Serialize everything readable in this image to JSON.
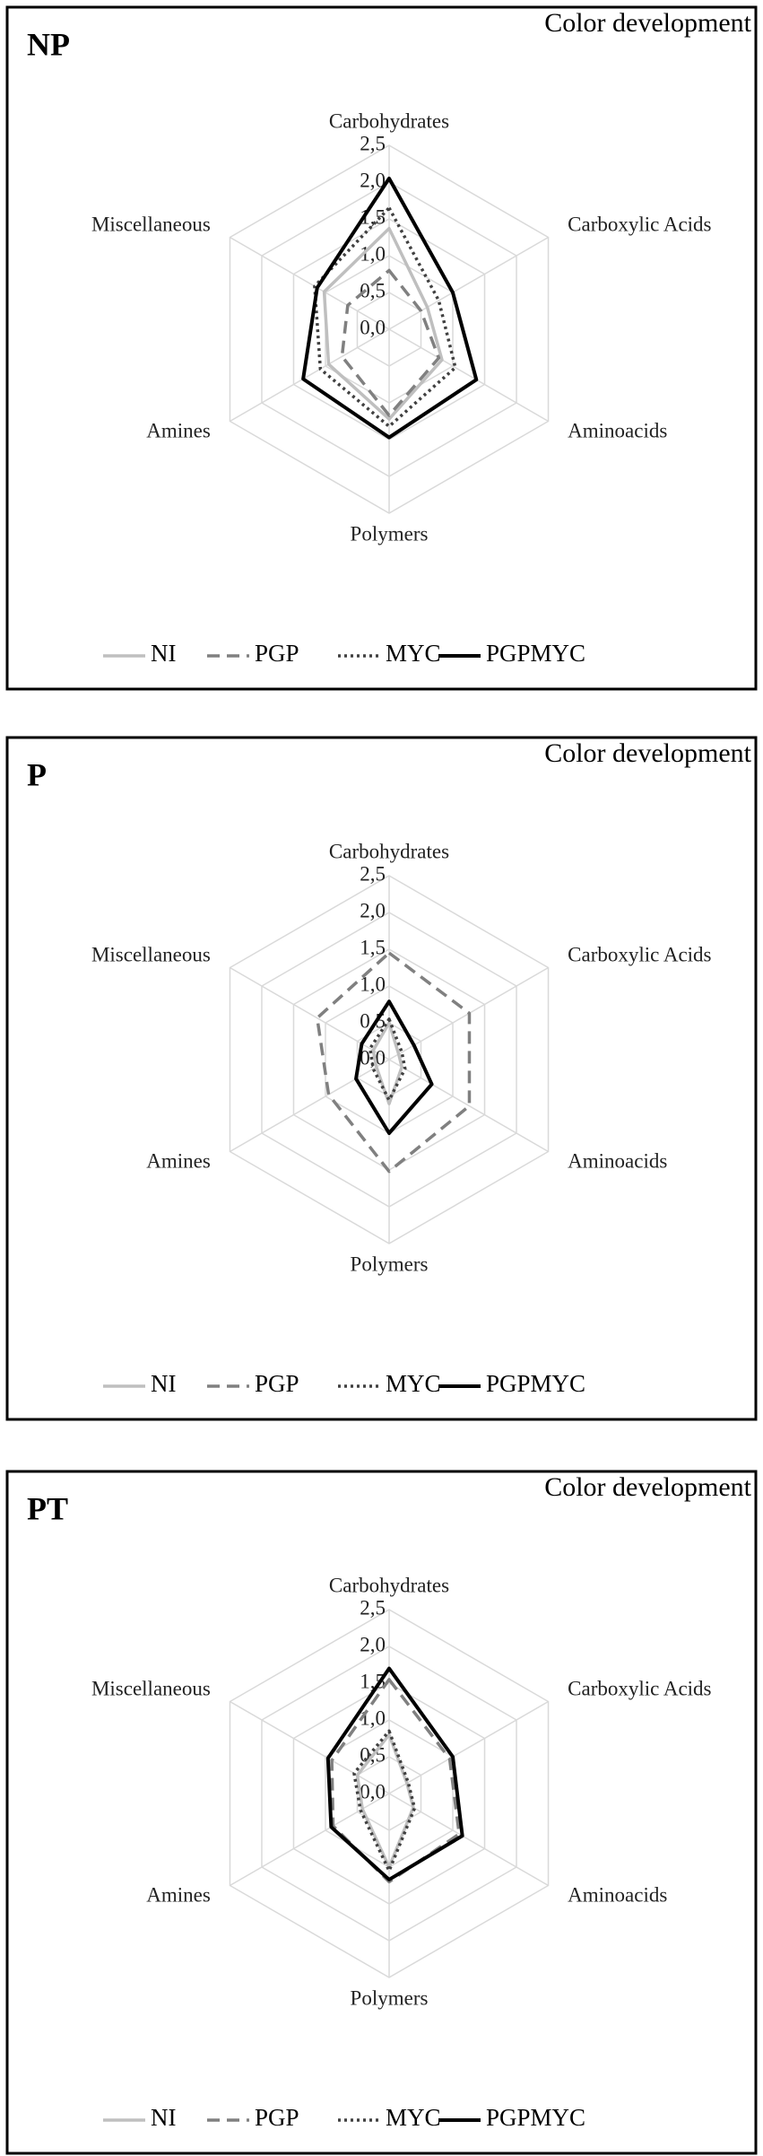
{
  "chart_data": [
    {
      "type": "radar",
      "panel": "NP",
      "title": "Color development",
      "categories": [
        "Carbohydrates",
        "Carboxylic Acids",
        "Aminoacids",
        "Polymers",
        "Amines",
        "Miscellaneous"
      ],
      "rlim": [
        0,
        2.5
      ],
      "rticks": [
        {
          "value": 0,
          "label": "0,0"
        },
        {
          "value": 0.5,
          "label": "0,5"
        },
        {
          "value": 1,
          "label": "1,0"
        },
        {
          "value": 1.5,
          "label": "1,5"
        },
        {
          "value": 2,
          "label": "2,0"
        },
        {
          "value": 2.5,
          "label": "2,5"
        }
      ],
      "series": [
        {
          "name": "NI",
          "color": "#bfbfbf",
          "line_style": "solid",
          "values": [
            1.37,
            0.6,
            0.83,
            1.22,
            0.95,
            1.02
          ]
        },
        {
          "name": "PGP",
          "color": "#808080",
          "line_style": "dashed",
          "values": [
            0.8,
            0.5,
            0.78,
            1.17,
            0.74,
            0.65
          ]
        },
        {
          "name": "MYC",
          "color": "#404040",
          "line_style": "dotted",
          "values": [
            1.65,
            0.78,
            1.04,
            1.32,
            1.08,
            1.17
          ]
        },
        {
          "name": "PGPMYC",
          "color": "#000000",
          "line_style": "solid",
          "values": [
            2.05,
            1.0,
            1.37,
            1.47,
            1.35,
            1.13
          ]
        }
      ]
    },
    {
      "type": "radar",
      "panel": "P",
      "title": "Color development",
      "categories": [
        "Carbohydrates",
        "Carboxylic Acids",
        "Aminoacids",
        "Polymers",
        "Amines",
        "Miscellaneous"
      ],
      "rlim": [
        0,
        2.5
      ],
      "rticks": [
        {
          "value": 0,
          "label": "0,0"
        },
        {
          "value": 0.5,
          "label": "0,5"
        },
        {
          "value": 1,
          "label": "1,0"
        },
        {
          "value": 1.5,
          "label": "1,5"
        },
        {
          "value": 2,
          "label": "2,0"
        },
        {
          "value": 2.5,
          "label": "2,5"
        }
      ],
      "series": [
        {
          "name": "NI",
          "color": "#bfbfbf",
          "line_style": "solid",
          "values": [
            0.5,
            0.15,
            0.2,
            0.6,
            0.2,
            0.25
          ]
        },
        {
          "name": "PGP",
          "color": "#808080",
          "line_style": "dashed",
          "values": [
            1.45,
            1.26,
            1.26,
            1.52,
            0.95,
            1.13
          ]
        },
        {
          "name": "MYC",
          "color": "#404040",
          "line_style": "dotted",
          "values": [
            0.55,
            0.2,
            0.25,
            0.55,
            0.25,
            0.3
          ]
        },
        {
          "name": "PGPMYC",
          "color": "#000000",
          "line_style": "solid",
          "values": [
            0.79,
            0.39,
            0.67,
            1.0,
            0.52,
            0.43
          ]
        }
      ]
    },
    {
      "type": "radar",
      "panel": "PT",
      "title": "Color development",
      "categories": [
        "Carbohydrates",
        "Carboxylic Acids",
        "Aminoacids",
        "Polymers",
        "Amines",
        "Miscellaneous"
      ],
      "rlim": [
        0,
        2.5
      ],
      "rticks": [
        {
          "value": 0,
          "label": "0,0"
        },
        {
          "value": 0.5,
          "label": "0,5"
        },
        {
          "value": 1,
          "label": "1,0"
        },
        {
          "value": 1.5,
          "label": "1,5"
        },
        {
          "value": 2,
          "label": "2,0"
        },
        {
          "value": 2.5,
          "label": "2,5"
        }
      ],
      "series": [
        {
          "name": "NI",
          "color": "#bfbfbf",
          "line_style": "solid",
          "values": [
            0.8,
            0.28,
            0.38,
            1.0,
            0.42,
            0.5
          ]
        },
        {
          "name": "PGP",
          "color": "#808080",
          "line_style": "dashed",
          "values": [
            1.55,
            0.95,
            1.1,
            1.2,
            0.88,
            0.9
          ]
        },
        {
          "name": "MYC",
          "color": "#404040",
          "line_style": "dotted",
          "values": [
            0.85,
            0.3,
            0.4,
            1.05,
            0.45,
            0.55
          ]
        },
        {
          "name": "PGPMYC",
          "color": "#000000",
          "line_style": "solid",
          "values": [
            1.7,
            1.0,
            1.15,
            1.17,
            0.91,
            0.96
          ]
        }
      ]
    }
  ]
}
